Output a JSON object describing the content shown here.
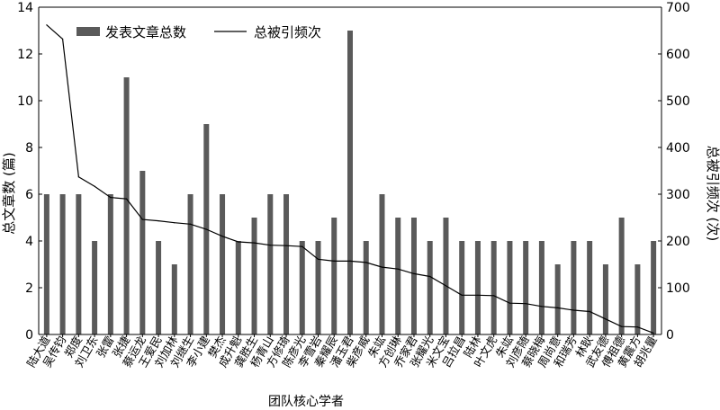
{
  "chart_data": {
    "type": "bar+line",
    "xlabel": "团队核心学者",
    "ylabel_left": "总文章数 (篇)",
    "ylabel_right": "总被引频次 (次)",
    "ylim_left": [
      0,
      14
    ],
    "ylim_right": [
      0,
      700
    ],
    "yticks_left": [
      0,
      2,
      4,
      6,
      8,
      10,
      12,
      14
    ],
    "yticks_right": [
      0,
      100,
      200,
      300,
      400,
      500,
      600,
      700
    ],
    "legend": {
      "placement": "top-left",
      "bar_label": "发表文章总数",
      "line_label": "总被引频次"
    },
    "colors": {
      "bar": "#5a5a5a",
      "line": "#000000",
      "axis": "#000000"
    },
    "categories": [
      "陆大道",
      "吴传钧",
      "郑度",
      "刘卫东",
      "张雷",
      "张捷",
      "蔡运龙",
      "王爱民",
      "刘加林",
      "刘继生",
      "李小建",
      "樊杰",
      "成升魁",
      "龚胜生",
      "杨青山",
      "方修琦",
      "陈彦光",
      "李雪岩",
      "秦耀辰",
      "潘玉君",
      "柴彦威",
      "朱竑",
      "方创琳",
      "乔家君",
      "张耀光",
      "米文宝",
      "吕拉昌",
      "陆林",
      "叶文虎",
      "朱竑",
      "刘彦随",
      "蔡晓梅",
      "周尚意",
      "和瑞芳",
      "林耿",
      "武友德",
      "傅祖德",
      "黄震方",
      "胡兆量"
    ],
    "bar_values": [
      6,
      6,
      6,
      4,
      6,
      11,
      7,
      4,
      3,
      6,
      9,
      6,
      4,
      5,
      6,
      6,
      4,
      4,
      5,
      13,
      4,
      6,
      5,
      5,
      4,
      5,
      4,
      4,
      4,
      4,
      4,
      4,
      3,
      4,
      4,
      3,
      5,
      3,
      4
    ],
    "line_values": [
      662,
      632,
      337,
      317,
      293,
      290,
      246,
      243,
      239,
      236,
      225,
      210,
      198,
      196,
      191,
      190,
      188,
      161,
      157,
      157,
      154,
      144,
      140,
      130,
      124,
      104,
      84,
      84,
      83,
      67,
      66,
      60,
      57,
      52,
      49,
      33,
      17,
      16,
      3
    ]
  }
}
